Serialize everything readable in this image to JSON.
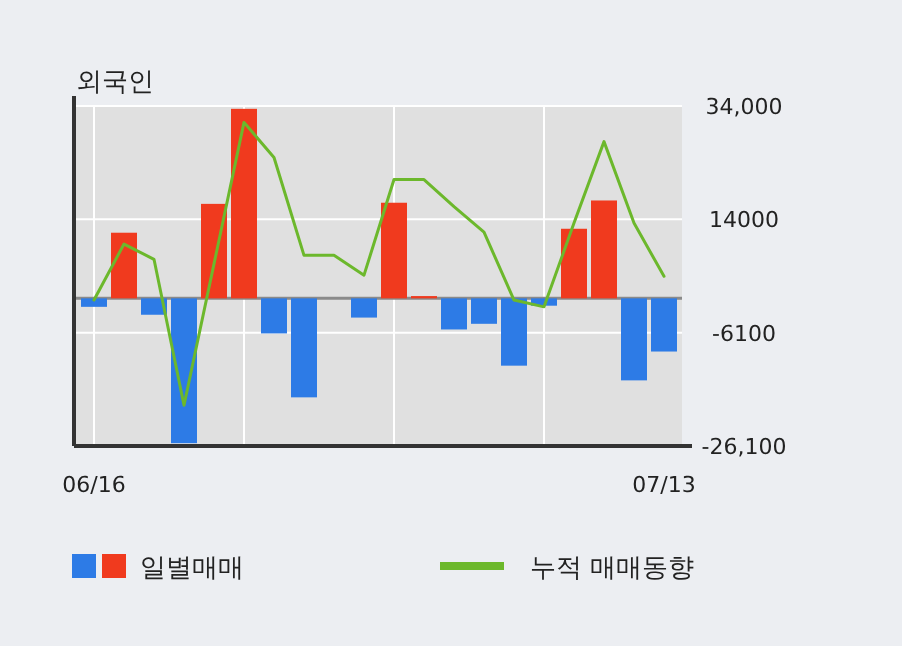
{
  "chart_data": {
    "type": "bar",
    "title": "외국인",
    "categories": [
      "06/16",
      null,
      null,
      null,
      null,
      null,
      null,
      null,
      null,
      null,
      null,
      null,
      null,
      null,
      null,
      null,
      null,
      null,
      null,
      "07/13"
    ],
    "series": [
      {
        "name": "일별매매",
        "colors": [
          "#2d7be6",
          "#f03a1e",
          "#2d7be6",
          "#2d7be6",
          "#f03a1e",
          "#f03a1e",
          "#2d7be6",
          "#2d7be6",
          "#f03a1e",
          "#2d7be6",
          "#f03a1e",
          "#f03a1e",
          "#2d7be6",
          "#2d7be6",
          "#2d7be6",
          "#2d7be6",
          "#f03a1e",
          "#f03a1e",
          "#2d7be6",
          "#2d7be6"
        ],
        "values": [
          -1500,
          11600,
          -2900,
          -25600,
          16700,
          33500,
          -6200,
          -17500,
          0,
          -3400,
          16900,
          400,
          -5500,
          -4500,
          -11900,
          -1300,
          12300,
          17300,
          -14500,
          -9400
        ]
      },
      {
        "name": "누적 매매동향",
        "type": "line",
        "color": "#6cb82c",
        "values": [
          -300,
          9600,
          6900,
          -18900,
          6100,
          31100,
          24900,
          7600,
          7600,
          4100,
          21000,
          21000,
          16200,
          11700,
          -300,
          -1500,
          13300,
          27700,
          13300,
          3900
        ]
      }
    ],
    "ylim": [
      -26100,
      34000
    ],
    "yticks": [
      {
        "value": 34000,
        "label": "34,000"
      },
      14000,
      -6100,
      {
        "value": -26100,
        "label": "-26,100"
      }
    ],
    "grid": true,
    "legend": "bottom"
  }
}
